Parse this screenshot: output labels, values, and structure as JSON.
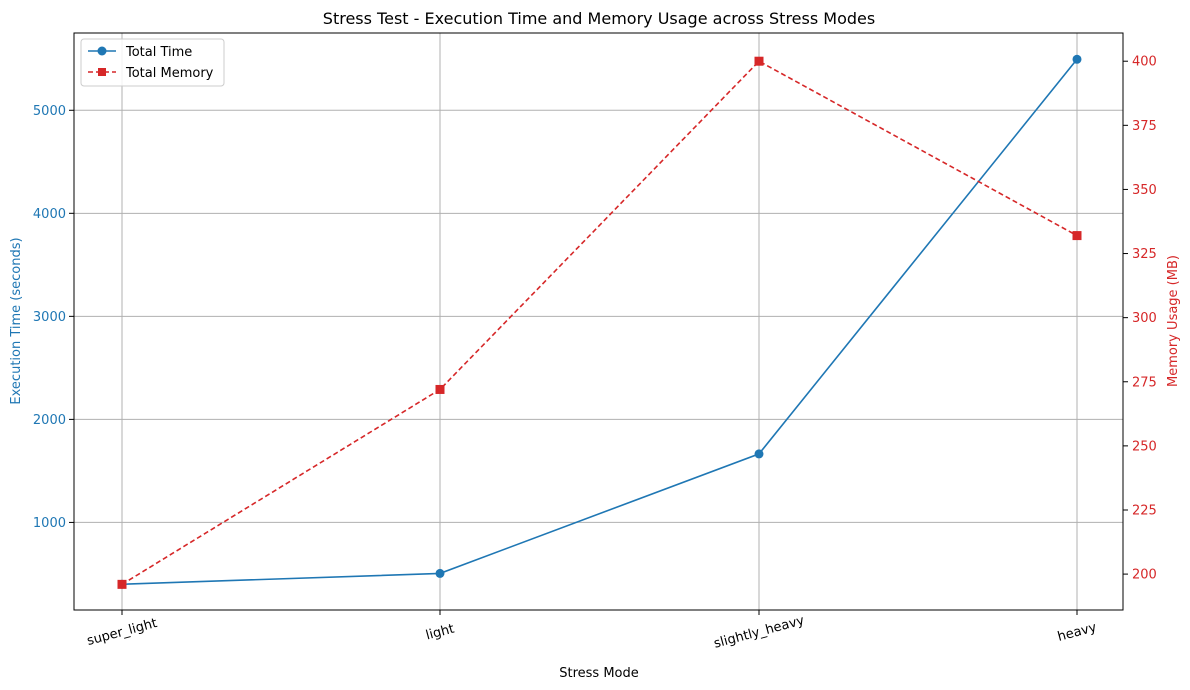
{
  "chart_data": {
    "type": "line",
    "title": "Stress Test - Execution Time and Memory Usage across Stress Modes",
    "xlabel": "Stress Mode",
    "ylabel_left": "Execution Time (seconds)",
    "ylabel_right": "Memory Usage (MB)",
    "categories": [
      "super_light",
      "light",
      "slightly_heavy",
      "heavy"
    ],
    "ylim_left": [
      150,
      5750
    ],
    "ylim_right": [
      186,
      411
    ],
    "yticks_left": [
      1000,
      2000,
      3000,
      4000,
      5000
    ],
    "yticks_right": [
      200,
      225,
      250,
      275,
      300,
      325,
      350,
      375,
      400
    ],
    "grid": true,
    "legend_position": "upper-left",
    "colors": {
      "time": "#1f77b4",
      "memory": "#d62728",
      "grid": "#b0b0b0"
    },
    "series": [
      {
        "name": "Total Time",
        "axis": "left",
        "style": "solid",
        "marker": "circle",
        "values": [
          400,
          505,
          1665,
          5495
        ]
      },
      {
        "name": "Total Memory",
        "axis": "right",
        "style": "dashed",
        "marker": "square",
        "values": [
          196,
          272,
          400,
          332
        ]
      }
    ]
  }
}
